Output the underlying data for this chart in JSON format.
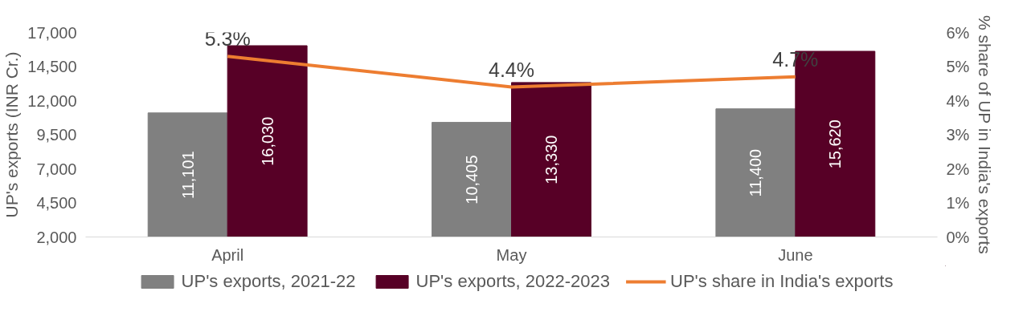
{
  "chart_data": {
    "type": "bar",
    "categories": [
      "April",
      "May",
      "June"
    ],
    "ylabel": "UP's exports (INR Cr.)",
    "y2label": "% share of UP in India's exports",
    "ylim": [
      2000,
      17000
    ],
    "yticks": [
      {
        "value": 2000,
        "label": "2,000"
      },
      {
        "value": 4500,
        "label": "4,500"
      },
      {
        "value": 7000,
        "label": "7,000"
      },
      {
        "value": 9500,
        "label": "9,500"
      },
      {
        "value": 12000,
        "label": "12,000"
      },
      {
        "value": 14500,
        "label": "14,500"
      },
      {
        "value": 17000,
        "label": "17,000"
      }
    ],
    "y2lim": [
      0,
      6
    ],
    "y2ticks": [
      {
        "value": 0,
        "label": "0%"
      },
      {
        "value": 1,
        "label": "1%"
      },
      {
        "value": 2,
        "label": "2%"
      },
      {
        "value": 3,
        "label": "3%"
      },
      {
        "value": 4,
        "label": "4%"
      },
      {
        "value": 5,
        "label": "5%"
      },
      {
        "value": 6,
        "label": "6%"
      }
    ],
    "series": [
      {
        "name": "UP's exports, 2021-22",
        "color": "#808080",
        "values": [
          11101,
          10405,
          11400
        ],
        "value_labels": [
          "11,101",
          "10,405",
          "11,400"
        ]
      },
      {
        "name": "UP's exports, 2022-2023",
        "color": "#570026",
        "values": [
          16030,
          13330,
          15620
        ],
        "value_labels": [
          "16,030",
          "13,330",
          "15,620"
        ]
      },
      {
        "name": "UP's share in India's exports",
        "type": "line",
        "axis": "y2",
        "color": "#ed7d31",
        "values": [
          5.3,
          4.4,
          4.7
        ],
        "value_labels": [
          "5.3%",
          "4.4%",
          "4.7%"
        ]
      }
    ],
    "legend": "bottom",
    "grid": false
  }
}
